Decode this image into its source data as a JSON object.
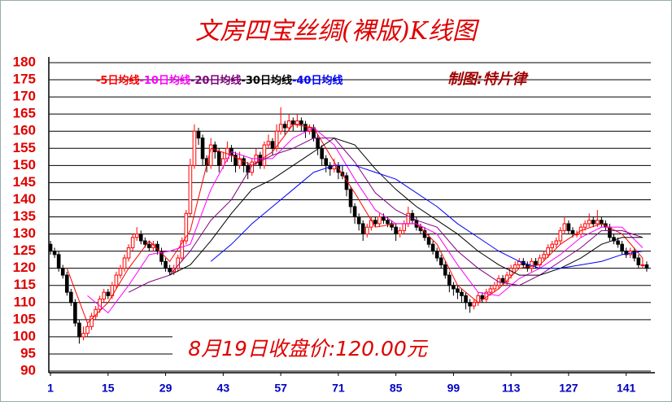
{
  "chart_data": {
    "type": "candlestick",
    "title": "文房四宝丝绸(裸版)K线图",
    "author_note": "制图:特片律",
    "annotation": "8月19日收盘价:120.00元",
    "up_color": "#ff0000",
    "down_color": "#000000",
    "xlim": [
      0,
      147
    ],
    "xticks": [
      1,
      15,
      29,
      43,
      57,
      71,
      85,
      99,
      113,
      127,
      141
    ],
    "ylim": [
      90,
      180
    ],
    "yticks": [
      90,
      95,
      100,
      105,
      110,
      115,
      120,
      125,
      130,
      135,
      140,
      145,
      150,
      155,
      160,
      165,
      170,
      175,
      180
    ],
    "grid": true,
    "x": [
      1,
      2,
      3,
      4,
      5,
      6,
      7,
      8,
      9,
      10,
      11,
      12,
      13,
      14,
      15,
      16,
      17,
      18,
      19,
      20,
      21,
      22,
      23,
      24,
      25,
      26,
      27,
      28,
      29,
      30,
      31,
      32,
      33,
      34,
      35,
      36,
      37,
      38,
      39,
      40,
      41,
      42,
      43,
      44,
      45,
      46,
      47,
      48,
      49,
      50,
      51,
      52,
      53,
      54,
      55,
      56,
      57,
      58,
      59,
      60,
      61,
      62,
      63,
      64,
      65,
      66,
      67,
      68,
      69,
      70,
      71,
      72,
      73,
      74,
      75,
      76,
      77,
      78,
      79,
      80,
      81,
      82,
      83,
      84,
      85,
      86,
      87,
      88,
      89,
      90,
      91,
      92,
      93,
      94,
      95,
      96,
      97,
      98,
      99,
      100,
      101,
      102,
      103,
      104,
      105,
      106,
      107,
      108,
      109,
      110,
      111,
      112,
      113,
      114,
      115,
      116,
      117,
      118,
      119,
      120,
      121,
      122,
      123,
      124,
      125,
      126,
      127,
      128,
      129,
      130,
      131,
      132,
      133,
      134,
      135,
      136,
      137,
      138,
      139,
      140,
      141,
      142,
      143,
      144,
      145,
      146
    ],
    "ohlc": [
      [
        127,
        128,
        124,
        125
      ],
      [
        125,
        126,
        123,
        124
      ],
      [
        124,
        125,
        119,
        120
      ],
      [
        120,
        121,
        117,
        118
      ],
      [
        118,
        119,
        112,
        113
      ],
      [
        113,
        114,
        109,
        110
      ],
      [
        110,
        111,
        103,
        104
      ],
      [
        104,
        105,
        98,
        100
      ],
      [
        100,
        103,
        99,
        101
      ],
      [
        101,
        104,
        100,
        103
      ],
      [
        103,
        107,
        102,
        106
      ],
      [
        106,
        109,
        105,
        108
      ],
      [
        108,
        112,
        107,
        111
      ],
      [
        111,
        114,
        110,
        113
      ],
      [
        113,
        114,
        111,
        112
      ],
      [
        112,
        116,
        111,
        115
      ],
      [
        115,
        119,
        114,
        118
      ],
      [
        118,
        121,
        117,
        120
      ],
      [
        120,
        124,
        119,
        123
      ],
      [
        123,
        127,
        122,
        126
      ],
      [
        126,
        130,
        125,
        129
      ],
      [
        129,
        132,
        128,
        130
      ],
      [
        130,
        131,
        127,
        128
      ],
      [
        128,
        129,
        126,
        127
      ],
      [
        127,
        128,
        125,
        126
      ],
      [
        126,
        128,
        125,
        127
      ],
      [
        127,
        128,
        124,
        125
      ],
      [
        125,
        126,
        121,
        122
      ],
      [
        122,
        123,
        119,
        120
      ],
      [
        120,
        121,
        118,
        119
      ],
      [
        119,
        121,
        118,
        120
      ],
      [
        120,
        124,
        119,
        123
      ],
      [
        123,
        129,
        122,
        128
      ],
      [
        128,
        137,
        127,
        136
      ],
      [
        136,
        152,
        135,
        150
      ],
      [
        150,
        162,
        149,
        160
      ],
      [
        160,
        161,
        156,
        158
      ],
      [
        158,
        159,
        150,
        152
      ],
      [
        152,
        153,
        148,
        150
      ],
      [
        150,
        158,
        149,
        156
      ],
      [
        156,
        157,
        152,
        154
      ],
      [
        154,
        155,
        148,
        150
      ],
      [
        150,
        154,
        149,
        152
      ],
      [
        152,
        157,
        151,
        155
      ],
      [
        155,
        156,
        151,
        153
      ],
      [
        153,
        154,
        148,
        150
      ],
      [
        150,
        154,
        149,
        152
      ],
      [
        152,
        153,
        148,
        150
      ],
      [
        150,
        151,
        146,
        148
      ],
      [
        148,
        152,
        147,
        151
      ],
      [
        151,
        155,
        150,
        153
      ],
      [
        153,
        154,
        149,
        150
      ],
      [
        150,
        157,
        149,
        156
      ],
      [
        156,
        159,
        155,
        157
      ],
      [
        157,
        158,
        153,
        155
      ],
      [
        155,
        162,
        154,
        160
      ],
      [
        160,
        167,
        159,
        162
      ],
      [
        162,
        163,
        159,
        161
      ],
      [
        161,
        165,
        160,
        163
      ],
      [
        163,
        164,
        160,
        162
      ],
      [
        162,
        165,
        161,
        163
      ],
      [
        163,
        164,
        160,
        162
      ],
      [
        162,
        163,
        158,
        160
      ],
      [
        160,
        162,
        159,
        161
      ],
      [
        161,
        162,
        157,
        158
      ],
      [
        158,
        159,
        153,
        155
      ],
      [
        155,
        156,
        150,
        152
      ],
      [
        152,
        153,
        148,
        150
      ],
      [
        150,
        151,
        147,
        149
      ],
      [
        149,
        152,
        148,
        150
      ],
      [
        150,
        151,
        146,
        148
      ],
      [
        148,
        150,
        146,
        147
      ],
      [
        147,
        148,
        141,
        143
      ],
      [
        143,
        144,
        136,
        138
      ],
      [
        138,
        139,
        133,
        135
      ],
      [
        135,
        136,
        131,
        133
      ],
      [
        133,
        134,
        128,
        130
      ],
      [
        130,
        133,
        129,
        132
      ],
      [
        132,
        135,
        131,
        134
      ],
      [
        134,
        135,
        132,
        133
      ],
      [
        133,
        136,
        132,
        135
      ],
      [
        135,
        136,
        133,
        134
      ],
      [
        134,
        135,
        132,
        133
      ],
      [
        133,
        134,
        131,
        132
      ],
      [
        132,
        133,
        128,
        130
      ],
      [
        130,
        132,
        129,
        131
      ],
      [
        131,
        134,
        130,
        133
      ],
      [
        133,
        138,
        132,
        136
      ],
      [
        136,
        137,
        133,
        134
      ],
      [
        134,
        135,
        131,
        132
      ],
      [
        132,
        133,
        130,
        131
      ],
      [
        131,
        132,
        128,
        129
      ],
      [
        129,
        130,
        126,
        127
      ],
      [
        127,
        128,
        124,
        125
      ],
      [
        125,
        126,
        122,
        123
      ],
      [
        123,
        124,
        120,
        121
      ],
      [
        121,
        122,
        117,
        118
      ],
      [
        118,
        119,
        113,
        115
      ],
      [
        115,
        116,
        112,
        114
      ],
      [
        114,
        115,
        111,
        113
      ],
      [
        113,
        114,
        110,
        112
      ],
      [
        112,
        113,
        108,
        110
      ],
      [
        110,
        111,
        107,
        109
      ],
      [
        109,
        111,
        108,
        110
      ],
      [
        110,
        113,
        109,
        112
      ],
      [
        112,
        113,
        110,
        111
      ],
      [
        111,
        114,
        110,
        113
      ],
      [
        113,
        115,
        112,
        114
      ],
      [
        114,
        116,
        113,
        115
      ],
      [
        115,
        118,
        114,
        117
      ],
      [
        117,
        118,
        115,
        116
      ],
      [
        116,
        119,
        115,
        118
      ],
      [
        118,
        121,
        117,
        120
      ],
      [
        120,
        122,
        119,
        121
      ],
      [
        121,
        123,
        120,
        122
      ],
      [
        122,
        123,
        120,
        121
      ],
      [
        121,
        122,
        119,
        120
      ],
      [
        120,
        123,
        119,
        122
      ],
      [
        122,
        123,
        120,
        121
      ],
      [
        121,
        124,
        120,
        123
      ],
      [
        123,
        125,
        122,
        124
      ],
      [
        124,
        127,
        123,
        126
      ],
      [
        126,
        128,
        125,
        127
      ],
      [
        127,
        129,
        126,
        128
      ],
      [
        128,
        132,
        127,
        131
      ],
      [
        131,
        135,
        130,
        133
      ],
      [
        133,
        134,
        130,
        131
      ],
      [
        131,
        132,
        129,
        130
      ],
      [
        130,
        131,
        129,
        130
      ],
      [
        130,
        133,
        129,
        132
      ],
      [
        132,
        134,
        131,
        133
      ],
      [
        133,
        136,
        132,
        134
      ],
      [
        134,
        135,
        132,
        133
      ],
      [
        133,
        137,
        132,
        134
      ],
      [
        134,
        135,
        132,
        133
      ],
      [
        133,
        134,
        131,
        132
      ],
      [
        132,
        133,
        128,
        129
      ],
      [
        129,
        130,
        127,
        128
      ],
      [
        128,
        129,
        126,
        127
      ],
      [
        127,
        128,
        124,
        125
      ],
      [
        125,
        126,
        123,
        124
      ],
      [
        124,
        126,
        123,
        125
      ],
      [
        125,
        126,
        122,
        123
      ],
      [
        123,
        124,
        120,
        121
      ],
      [
        121,
        123,
        120,
        121
      ],
      [
        121,
        122,
        119,
        120
      ]
    ],
    "series": [
      {
        "name": "-5日均线",
        "color": "#ff0000",
        "x": [
          5,
          10,
          15,
          20,
          25,
          30,
          35,
          40,
          45,
          50,
          55,
          60,
          65,
          70,
          75,
          80,
          85,
          90,
          95,
          100,
          105,
          110,
          115,
          120,
          125,
          130,
          135,
          140,
          145
        ],
        "values": [
          120,
          104,
          110,
          120,
          128,
          122,
          131,
          155,
          153,
          150,
          154,
          162,
          161,
          151,
          142,
          132,
          133,
          133,
          127,
          115,
          110,
          114,
          120,
          121,
          127,
          131,
          133,
          130,
          123
        ]
      },
      {
        "name": "-10日均线",
        "color": "#ff00ff",
        "x": [
          10,
          15,
          20,
          25,
          30,
          35,
          40,
          45,
          50,
          55,
          60,
          65,
          70,
          75,
          80,
          85,
          90,
          95,
          100,
          105,
          110,
          115,
          120,
          125,
          130,
          135,
          140,
          145
        ],
        "values": [
          112,
          107,
          115,
          124,
          125,
          127,
          143,
          154,
          152,
          152,
          158,
          161,
          156,
          146,
          137,
          133,
          133,
          130,
          121,
          113,
          112,
          117,
          120,
          124,
          129,
          132,
          132,
          126
        ]
      },
      {
        "name": "-20日均线",
        "color": "#800080",
        "x": [
          20,
          25,
          30,
          35,
          40,
          45,
          50,
          55,
          60,
          65,
          70,
          75,
          80,
          85,
          90,
          95,
          100,
          105,
          110,
          115,
          120,
          125,
          130,
          135,
          140,
          145
        ],
        "values": [
          113,
          116,
          118,
          125,
          134,
          140,
          150,
          153,
          155,
          158,
          158,
          151,
          142,
          137,
          134,
          132,
          125,
          120,
          116,
          115,
          118,
          122,
          126,
          131,
          131,
          129
        ]
      },
      {
        "name": "-30日均线",
        "color": "#000000",
        "x": [
          30,
          35,
          40,
          45,
          50,
          55,
          60,
          65,
          70,
          75,
          80,
          85,
          90,
          95,
          100,
          105,
          110,
          115,
          120,
          125,
          130,
          135,
          140,
          145
        ],
        "values": [
          118,
          121,
          128,
          136,
          143,
          146,
          150,
          154,
          158,
          156,
          149,
          143,
          138,
          134,
          130,
          125,
          121,
          118,
          118,
          120,
          123,
          127,
          129,
          129
        ]
      },
      {
        "name": "-40日均线",
        "color": "#0000ff",
        "x": [
          40,
          45,
          50,
          55,
          60,
          65,
          70,
          75,
          80,
          85,
          90,
          95,
          100,
          105,
          110,
          115,
          120,
          125,
          130,
          135,
          140,
          145
        ],
        "values": [
          122,
          127,
          133,
          138,
          143,
          148,
          150,
          150,
          148,
          146,
          142,
          138,
          133,
          129,
          125,
          122,
          120,
          120,
          121,
          122,
          124,
          125
        ]
      }
    ]
  }
}
